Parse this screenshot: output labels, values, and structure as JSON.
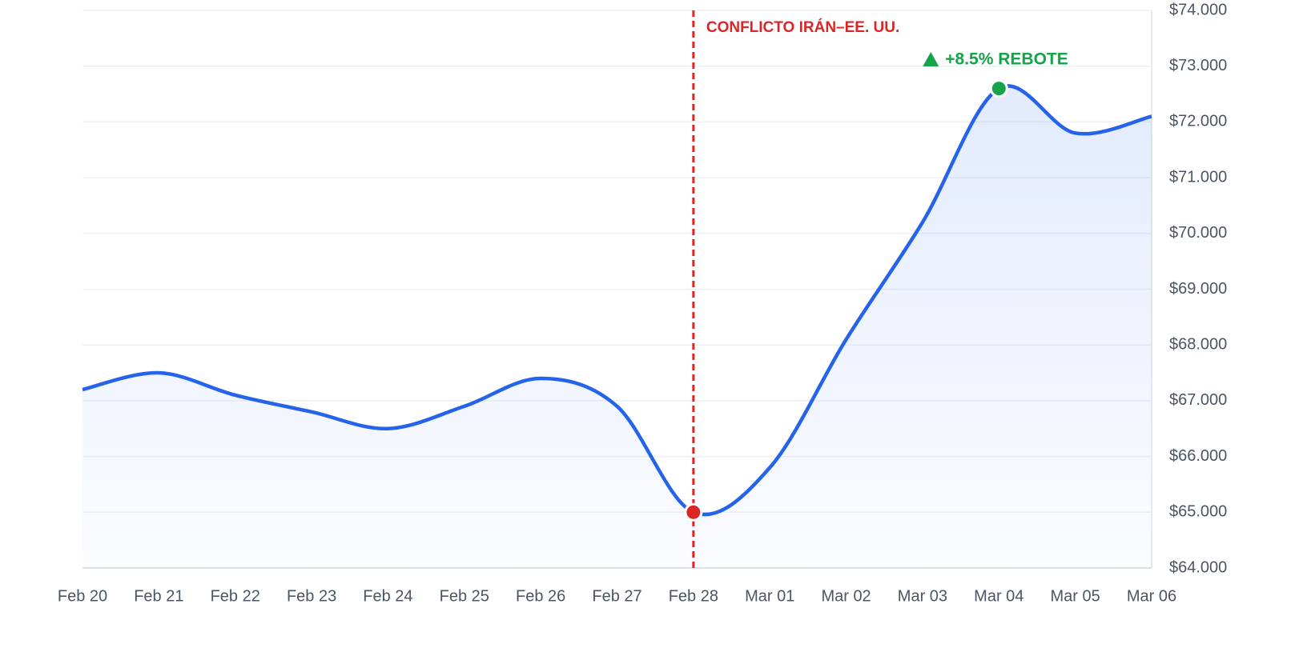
{
  "chart_data": {
    "type": "line",
    "categories": [
      "Feb 20",
      "Feb 21",
      "Feb 22",
      "Feb 23",
      "Feb 24",
      "Feb 25",
      "Feb 26",
      "Feb 27",
      "Feb 28",
      "Mar 01",
      "Mar 02",
      "Mar 03",
      "Mar 04",
      "Mar 05",
      "Mar 06"
    ],
    "series": [
      {
        "color": "#2563eb",
        "values": [
          67200,
          67500,
          67100,
          66800,
          66500,
          66900,
          67400,
          66900,
          65000,
          65800,
          68100,
          70200,
          72600,
          71800,
          72100
        ]
      }
    ],
    "ylim": [
      64000,
      74000
    ],
    "yticks": [
      {
        "value": 64000,
        "label": "$64.000"
      },
      {
        "value": 65000,
        "label": "$65.000"
      },
      {
        "value": 66000,
        "label": "$66.000"
      },
      {
        "value": 67000,
        "label": "$67.000"
      },
      {
        "value": 68000,
        "label": "$68.000"
      },
      {
        "value": 69000,
        "label": "$69.000"
      },
      {
        "value": 70000,
        "label": "$70.000"
      },
      {
        "value": 71000,
        "label": "$71.000"
      },
      {
        "value": 72000,
        "label": "$72.000"
      },
      {
        "value": 73000,
        "label": "$73.000"
      },
      {
        "value": 74000,
        "label": "$74.000"
      }
    ],
    "grid": true,
    "annotations": [
      {
        "x": "Feb 28",
        "label": "CONFLICTO IRÁN–EE. UU.",
        "color": "#dc2626"
      },
      {
        "x": "Mar 04",
        "label": "+8.5% REBOTE",
        "color": "#16a34a"
      }
    ]
  }
}
